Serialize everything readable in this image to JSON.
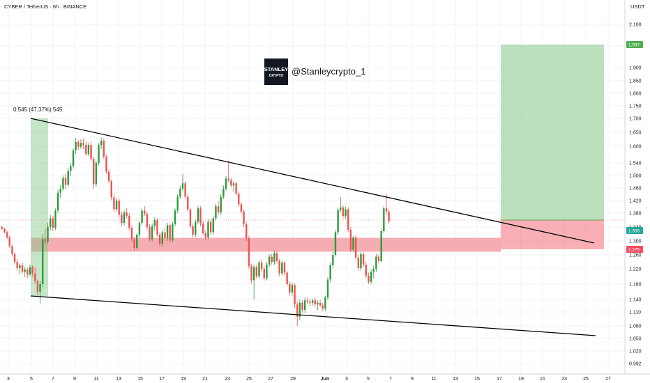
{
  "header": {
    "title": "CYBER / TetherUS · 6h · BINANCE",
    "currency": "USDT"
  },
  "watermark": {
    "handle": "@Stanleycrypto_1",
    "logo_text": "STANLEY",
    "logo_sub": "CRYPTO"
  },
  "colors": {
    "up": "#26a69a",
    "up_candle": "#2e9a3c",
    "down": "#ef5350",
    "support_zone": "#f08a93",
    "target_zone": "#a5d6a7",
    "stop_zone": "#f44d5e",
    "trendline": "#000000",
    "grid": "#f0f3fa",
    "price_line": "#f7525f"
  },
  "chart_data": {
    "type": "candlestick",
    "timeframe": "6h",
    "symbol": "CYBER / TetherUS",
    "exchange": "BINANCE",
    "x_tick_labels": [
      "3",
      "5",
      "7",
      "9",
      "11",
      "13",
      "15",
      "17",
      "19",
      "21",
      "23",
      "25",
      "27",
      "29",
      "Jun",
      "3",
      "5",
      "7",
      "9",
      "11",
      "13",
      "15",
      "17",
      "19",
      "21",
      "23",
      "25",
      "27"
    ],
    "y_ticks": [
      "2.100",
      "2.000",
      "1.900",
      "1.850",
      "1.800",
      "1.750",
      "1.700",
      "1.650",
      "1.600",
      "1.540",
      "1.500",
      "1.460",
      "1.420",
      "1.380",
      "1.340",
      "1.300",
      "1.260",
      "1.220",
      "1.180",
      "1.140",
      "1.110",
      "1.080",
      "1.050",
      "1.020",
      "0.992"
    ],
    "price_tags": [
      {
        "label": "1.997",
        "kind": "target"
      },
      {
        "label": "1.356",
        "kind": "last"
      },
      {
        "label": "1.275",
        "kind": "stop"
      }
    ],
    "annotations": {
      "measure_label": "0.545 (47.37%) 545"
    },
    "zones": {
      "support": {
        "low": 1.275,
        "high": 1.325
      },
      "target": {
        "low": 1.356,
        "high": 1.997
      },
      "stop": {
        "low": 1.275,
        "high": 1.356
      }
    },
    "trendlines": {
      "upper": {
        "from": {
          "bar": 0,
          "price": 1.7
        },
        "to": {
          "bar": 192,
          "price": 1.29
        }
      },
      "lower": {
        "from": {
          "bar": 0,
          "price": 1.15
        },
        "to": {
          "bar": 192,
          "price": 1.058
        }
      }
    },
    "candles": [
      [
        1.34,
        1.345,
        1.332,
        1.335
      ],
      [
        1.335,
        1.338,
        1.322,
        1.325
      ],
      [
        1.325,
        1.33,
        1.305,
        1.31
      ],
      [
        1.31,
        1.315,
        1.28,
        1.285
      ],
      [
        1.285,
        1.29,
        1.255,
        1.262
      ],
      [
        1.262,
        1.268,
        1.232,
        1.24
      ],
      [
        1.24,
        1.248,
        1.215,
        1.222
      ],
      [
        1.222,
        1.235,
        1.205,
        1.23
      ],
      [
        1.23,
        1.238,
        1.208,
        1.212
      ],
      [
        1.212,
        1.225,
        1.198,
        1.218
      ],
      [
        1.218,
        1.222,
        1.195,
        1.205
      ],
      [
        1.205,
        1.232,
        1.2,
        1.225
      ],
      [
        1.225,
        1.23,
        1.2,
        1.208
      ],
      [
        1.208,
        1.225,
        1.18,
        1.188
      ],
      [
        1.188,
        1.192,
        1.148,
        1.16
      ],
      [
        1.16,
        1.188,
        1.13,
        1.18
      ],
      [
        1.18,
        1.32,
        1.172,
        1.305
      ],
      [
        1.305,
        1.335,
        1.29,
        1.298
      ],
      [
        1.298,
        1.352,
        1.292,
        1.34
      ],
      [
        1.34,
        1.375,
        1.33,
        1.365
      ],
      [
        1.365,
        1.372,
        1.328,
        1.338
      ],
      [
        1.338,
        1.395,
        1.332,
        1.388
      ],
      [
        1.388,
        1.455,
        1.38,
        1.445
      ],
      [
        1.445,
        1.468,
        1.428,
        1.458
      ],
      [
        1.458,
        1.5,
        1.45,
        1.492
      ],
      [
        1.492,
        1.505,
        1.455,
        1.47
      ],
      [
        1.47,
        1.525,
        1.462,
        1.515
      ],
      [
        1.515,
        1.54,
        1.498,
        1.53
      ],
      [
        1.53,
        1.592,
        1.522,
        1.585
      ],
      [
        1.585,
        1.63,
        1.572,
        1.615
      ],
      [
        1.615,
        1.622,
        1.588,
        1.598
      ],
      [
        1.598,
        1.625,
        1.59,
        1.612
      ],
      [
        1.612,
        1.628,
        1.59,
        1.605
      ],
      [
        1.605,
        1.618,
        1.565,
        1.572
      ],
      [
        1.572,
        1.612,
        1.565,
        1.605
      ],
      [
        1.605,
        1.618,
        1.548,
        1.555
      ],
      [
        1.555,
        1.562,
        1.458,
        1.472
      ],
      [
        1.472,
        1.548,
        1.465,
        1.54
      ],
      [
        1.54,
        1.612,
        1.532,
        1.605
      ],
      [
        1.605,
        1.632,
        1.59,
        1.62
      ],
      [
        1.62,
        1.628,
        1.555,
        1.562
      ],
      [
        1.562,
        1.57,
        1.505,
        1.512
      ],
      [
        1.512,
        1.52,
        1.475,
        1.482
      ],
      [
        1.482,
        1.488,
        1.42,
        1.43
      ],
      [
        1.43,
        1.442,
        1.382,
        1.392
      ],
      [
        1.392,
        1.428,
        1.385,
        1.42
      ],
      [
        1.42,
        1.428,
        1.368,
        1.375
      ],
      [
        1.375,
        1.382,
        1.342,
        1.352
      ],
      [
        1.352,
        1.388,
        1.345,
        1.382
      ],
      [
        1.382,
        1.395,
        1.365,
        1.372
      ],
      [
        1.372,
        1.38,
        1.33,
        1.338
      ],
      [
        1.338,
        1.345,
        1.298,
        1.305
      ],
      [
        1.305,
        1.312,
        1.272,
        1.28
      ],
      [
        1.28,
        1.322,
        1.275,
        1.318
      ],
      [
        1.318,
        1.358,
        1.31,
        1.352
      ],
      [
        1.352,
        1.395,
        1.345,
        1.388
      ],
      [
        1.388,
        1.402,
        1.372,
        1.378
      ],
      [
        1.378,
        1.385,
        1.332,
        1.34
      ],
      [
        1.34,
        1.348,
        1.298,
        1.305
      ],
      [
        1.305,
        1.35,
        1.298,
        1.342
      ],
      [
        1.342,
        1.368,
        1.33,
        1.36
      ],
      [
        1.36,
        1.365,
        1.312,
        1.318
      ],
      [
        1.318,
        1.325,
        1.285,
        1.292
      ],
      [
        1.292,
        1.332,
        1.285,
        1.325
      ],
      [
        1.325,
        1.338,
        1.3,
        1.308
      ],
      [
        1.308,
        1.352,
        1.3,
        1.345
      ],
      [
        1.345,
        1.35,
        1.295,
        1.302
      ],
      [
        1.302,
        1.355,
        1.296,
        1.348
      ],
      [
        1.348,
        1.395,
        1.342,
        1.388
      ],
      [
        1.388,
        1.44,
        1.38,
        1.432
      ],
      [
        1.432,
        1.468,
        1.425,
        1.458
      ],
      [
        1.458,
        1.505,
        1.45,
        1.475
      ],
      [
        1.475,
        1.482,
        1.425,
        1.432
      ],
      [
        1.432,
        1.44,
        1.385,
        1.392
      ],
      [
        1.392,
        1.398,
        1.335,
        1.342
      ],
      [
        1.342,
        1.35,
        1.31,
        1.318
      ],
      [
        1.318,
        1.362,
        1.312,
        1.355
      ],
      [
        1.355,
        1.402,
        1.348,
        1.395
      ],
      [
        1.395,
        1.402,
        1.342,
        1.35
      ],
      [
        1.35,
        1.358,
        1.315,
        1.322
      ],
      [
        1.322,
        1.33,
        1.302,
        1.31
      ],
      [
        1.31,
        1.362,
        1.305,
        1.355
      ],
      [
        1.355,
        1.362,
        1.318,
        1.325
      ],
      [
        1.325,
        1.372,
        1.318,
        1.365
      ],
      [
        1.365,
        1.41,
        1.358,
        1.402
      ],
      [
        1.402,
        1.418,
        1.375,
        1.382
      ],
      [
        1.382,
        1.44,
        1.375,
        1.432
      ],
      [
        1.432,
        1.468,
        1.425,
        1.458
      ],
      [
        1.458,
        1.498,
        1.45,
        1.49
      ],
      [
        1.49,
        1.548,
        1.478,
        1.485
      ],
      [
        1.485,
        1.492,
        1.462,
        1.468
      ],
      [
        1.468,
        1.482,
        1.448,
        1.475
      ],
      [
        1.475,
        1.48,
        1.435,
        1.442
      ],
      [
        1.442,
        1.448,
        1.4,
        1.408
      ],
      [
        1.408,
        1.415,
        1.378,
        1.385
      ],
      [
        1.385,
        1.392,
        1.34,
        1.348
      ],
      [
        1.348,
        1.355,
        1.3,
        1.308
      ],
      [
        1.308,
        1.315,
        1.22,
        1.228
      ],
      [
        1.228,
        1.235,
        1.182,
        1.19
      ],
      [
        1.19,
        1.232,
        1.14,
        1.225
      ],
      [
        1.225,
        1.232,
        1.195,
        1.2
      ],
      [
        1.2,
        1.245,
        1.195,
        1.238
      ],
      [
        1.238,
        1.245,
        1.212,
        1.22
      ],
      [
        1.22,
        1.228,
        1.188,
        1.195
      ],
      [
        1.195,
        1.24,
        1.19,
        1.232
      ],
      [
        1.232,
        1.262,
        1.225,
        1.255
      ],
      [
        1.255,
        1.262,
        1.232,
        1.24
      ],
      [
        1.24,
        1.272,
        1.232,
        1.265
      ],
      [
        1.265,
        1.272,
        1.235,
        1.242
      ],
      [
        1.242,
        1.248,
        1.2,
        1.208
      ],
      [
        1.208,
        1.245,
        1.202,
        1.238
      ],
      [
        1.238,
        1.242,
        1.202,
        1.21
      ],
      [
        1.21,
        1.215,
        1.175,
        1.18
      ],
      [
        1.18,
        1.188,
        1.15,
        1.158
      ],
      [
        1.158,
        1.185,
        1.15,
        1.178
      ],
      [
        1.178,
        1.182,
        1.12,
        1.128
      ],
      [
        1.128,
        1.135,
        1.08,
        1.1
      ],
      [
        1.1,
        1.14,
        1.092,
        1.132
      ],
      [
        1.132,
        1.138,
        1.108,
        1.115
      ],
      [
        1.115,
        1.145,
        1.108,
        1.138
      ],
      [
        1.138,
        1.145,
        1.128,
        1.135
      ],
      [
        1.135,
        1.142,
        1.125,
        1.132
      ],
      [
        1.132,
        1.142,
        1.125,
        1.138
      ],
      [
        1.138,
        1.145,
        1.122,
        1.128
      ],
      [
        1.128,
        1.138,
        1.115,
        1.132
      ],
      [
        1.132,
        1.14,
        1.122,
        1.126
      ],
      [
        1.126,
        1.132,
        1.112,
        1.118
      ],
      [
        1.118,
        1.15,
        1.112,
        1.145
      ],
      [
        1.145,
        1.198,
        1.138,
        1.192
      ],
      [
        1.192,
        1.238,
        1.185,
        1.23
      ],
      [
        1.23,
        1.268,
        1.222,
        1.26
      ],
      [
        1.26,
        1.332,
        1.255,
        1.325
      ],
      [
        1.325,
        1.395,
        1.318,
        1.39
      ],
      [
        1.39,
        1.432,
        1.382,
        1.398
      ],
      [
        1.398,
        1.405,
        1.365,
        1.372
      ],
      [
        1.372,
        1.4,
        1.365,
        1.392
      ],
      [
        1.392,
        1.398,
        1.325,
        1.332
      ],
      [
        1.332,
        1.34,
        1.268,
        1.275
      ],
      [
        1.275,
        1.315,
        1.268,
        1.31
      ],
      [
        1.31,
        1.318,
        1.245,
        1.252
      ],
      [
        1.252,
        1.26,
        1.215,
        1.222
      ],
      [
        1.222,
        1.268,
        1.215,
        1.262
      ],
      [
        1.262,
        1.268,
        1.225,
        1.232
      ],
      [
        1.232,
        1.24,
        1.195,
        1.202
      ],
      [
        1.202,
        1.21,
        1.18,
        1.186
      ],
      [
        1.186,
        1.218,
        1.18,
        1.212
      ],
      [
        1.212,
        1.228,
        1.195,
        1.22
      ],
      [
        1.22,
        1.262,
        1.212,
        1.255
      ],
      [
        1.255,
        1.26,
        1.235,
        1.242
      ],
      [
        1.242,
        1.335,
        1.238,
        1.328
      ],
      [
        1.328,
        1.402,
        1.322,
        1.395
      ],
      [
        1.395,
        1.44,
        1.375,
        1.385
      ],
      [
        1.385,
        1.392,
        1.35,
        1.356
      ]
    ],
    "title": "CYBER / TetherUS · 6h · BINANCE"
  }
}
